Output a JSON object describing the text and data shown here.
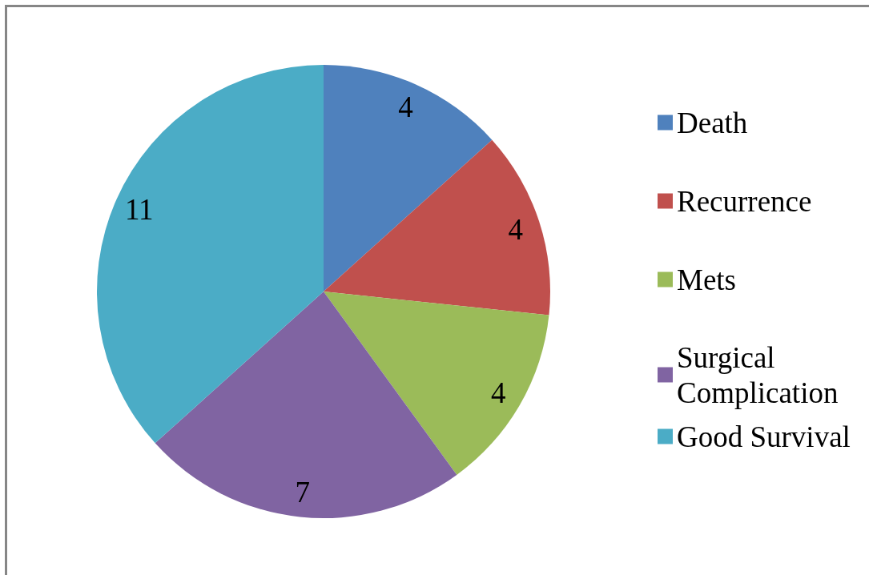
{
  "chart_data": {
    "type": "pie",
    "categories": [
      "Death",
      "Recurrence",
      "Mets",
      "Surgical Complication",
      "Good Survival"
    ],
    "values": [
      4,
      4,
      4,
      7,
      11
    ],
    "colors": [
      "#4f81bd",
      "#c0504d",
      "#9bbb59",
      "#8064a2",
      "#4bacc6"
    ],
    "data_labels": true,
    "legend": "right"
  }
}
